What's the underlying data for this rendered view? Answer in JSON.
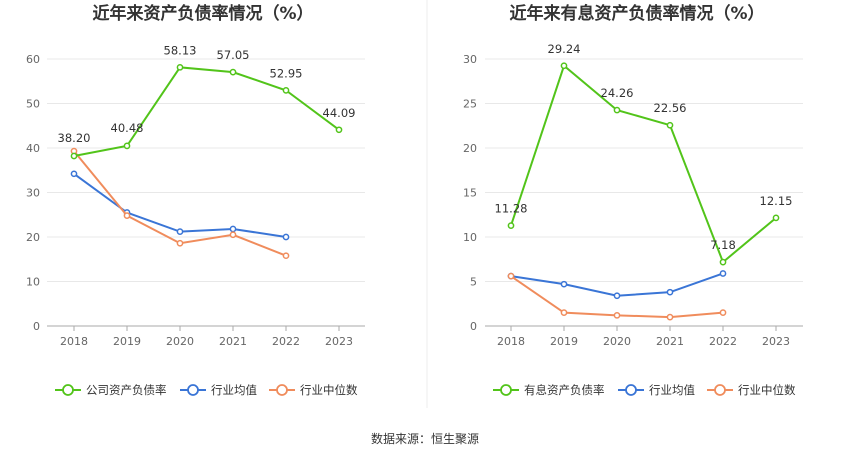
{
  "colors": {
    "company": "#52c41a",
    "industry_avg": "#3a75d6",
    "industry_median": "#f08c5c",
    "grid": "#e8e8e8",
    "axis": "#aaaaaa"
  },
  "source": "数据来源：恒生聚源",
  "chart_data": [
    {
      "type": "line",
      "title": "近年来资产负债率情况（%）",
      "xlabel": "",
      "ylabel": "",
      "categories": [
        "2018",
        "2019",
        "2020",
        "2021",
        "2022",
        "2023"
      ],
      "ylim": [
        0,
        60
      ],
      "yticks": [
        0,
        10,
        20,
        30,
        40,
        50,
        60
      ],
      "grid": true,
      "legend_position": "bottom",
      "series": [
        {
          "name": "公司资产负债率",
          "color": "#52c41a",
          "labeled": true,
          "values": [
            38.2,
            40.48,
            58.13,
            57.05,
            52.95,
            44.09
          ],
          "labels": [
            "38.20",
            "40.48",
            "58.13",
            "57.05",
            "52.95",
            "44.09"
          ]
        },
        {
          "name": "行业均值",
          "color": "#3a75d6",
          "labeled": false,
          "values": [
            34.2,
            25.5,
            21.2,
            21.8,
            20.0,
            null
          ]
        },
        {
          "name": "行业中位数",
          "color": "#f08c5c",
          "labeled": false,
          "values": [
            39.3,
            24.8,
            18.6,
            20.5,
            15.8,
            null
          ]
        }
      ]
    },
    {
      "type": "line",
      "title": "近年来有息资产负债率情况（%）",
      "xlabel": "",
      "ylabel": "",
      "categories": [
        "2018",
        "2019",
        "2020",
        "2021",
        "2022",
        "2023"
      ],
      "ylim": [
        0,
        30
      ],
      "yticks": [
        0,
        5,
        10,
        15,
        20,
        25,
        30
      ],
      "grid": true,
      "legend_position": "bottom",
      "series": [
        {
          "name": "有息资产负债率",
          "color": "#52c41a",
          "labeled": true,
          "values": [
            11.28,
            29.24,
            24.26,
            22.56,
            7.18,
            12.15
          ],
          "labels": [
            "11.28",
            "29.24",
            "24.26",
            "22.56",
            "7.18",
            "12.15"
          ]
        },
        {
          "name": "行业均值",
          "color": "#3a75d6",
          "labeled": false,
          "values": [
            5.6,
            4.7,
            3.4,
            3.8,
            5.9,
            null
          ]
        },
        {
          "name": "行业中位数",
          "color": "#f08c5c",
          "labeled": false,
          "values": [
            5.6,
            1.5,
            1.2,
            1.0,
            1.5,
            null
          ]
        }
      ]
    }
  ]
}
